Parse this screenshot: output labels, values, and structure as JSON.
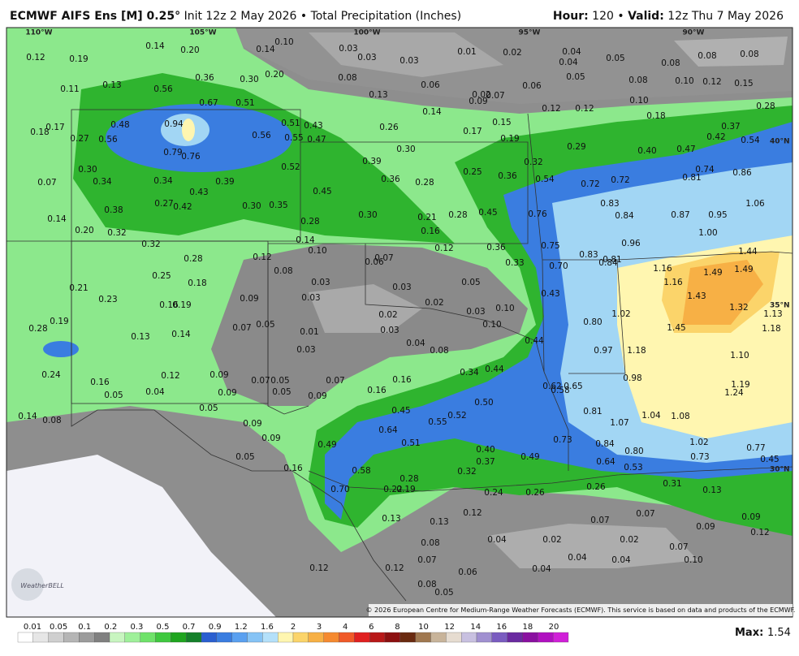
{
  "header": {
    "model": "ECMWF AIFS Ens [M] 0.25°",
    "description": "Init 12z 2 May 2026",
    "separator": "•",
    "product": "Total Precipitation (Inches)",
    "hour_label": "Hour:",
    "hour": "120",
    "valid_label": "Valid:",
    "valid": "12z Thu 7 May 2026"
  },
  "map": {
    "longitudes": [
      "110°W",
      "105°W",
      "100°W",
      "95°W",
      "90°W"
    ],
    "latitudes": [
      "40°N",
      "35°N",
      "30°N"
    ],
    "labels": [
      "0.12",
      "0.19",
      "0.14",
      "0.20",
      "0.14",
      "0.10",
      "0.03",
      "0.03",
      "0.03",
      "0.01",
      "0.02",
      "0.04",
      "0.04",
      "0.05",
      "0.08",
      "0.08",
      "0.08",
      "0.11",
      "0.13",
      "0.36",
      "0.30",
      "0.20",
      "0.08",
      "0.06",
      "0.06",
      "0.05",
      "0.08",
      "0.10",
      "0.12",
      "0.15",
      "0.56",
      "0.13",
      "0.02",
      "0.07",
      "0.09",
      "0.67",
      "0.51",
      "0.14",
      "0.12",
      "0.12",
      "0.10",
      "0.28",
      "0.18",
      "0.18",
      "0.17",
      "0.48",
      "0.94",
      "0.51",
      "0.43",
      "0.26",
      "0.17",
      "0.15",
      "0.37",
      "0.56",
      "0.27",
      "0.56",
      "0.55",
      "0.47",
      "0.19",
      "0.42",
      "0.54",
      "0.79",
      "0.76",
      "0.30",
      "0.29",
      "0.40",
      "0.47",
      "0.39",
      "0.32",
      "0.52",
      "0.30",
      "0.34",
      "0.34",
      "0.39",
      "0.25",
      "0.36",
      "0.54",
      "0.72",
      "0.72",
      "0.81",
      "0.74",
      "0.86",
      "0.07",
      "0.36",
      "0.28",
      "0.43",
      "0.45",
      "0.27",
      "0.42",
      "0.30",
      "0.35",
      "0.38",
      "0.83",
      "0.84",
      "1.06",
      "0.87",
      "0.95",
      "0.14",
      "0.30",
      "0.21",
      "0.28",
      "0.45",
      "0.76",
      "0.28",
      "0.20",
      "0.32",
      "0.16",
      "1.00",
      "0.14",
      "0.32",
      "0.96",
      "0.12",
      "0.36",
      "0.75",
      "0.10",
      "0.83",
      "0.12",
      "0.06",
      "0.07",
      "0.28",
      "0.33",
      "0.70",
      "0.84",
      "0.81",
      "1.16",
      "1.16",
      "1.44",
      "1.49",
      "1.49",
      "0.08",
      "0.25",
      "0.18",
      "0.03",
      "0.03",
      "0.05",
      "0.21",
      "0.43",
      "1.43",
      "0.03",
      "0.09",
      "0.23",
      "0.16",
      "0.19",
      "0.02",
      "0.03",
      "0.10",
      "1.32",
      "1.13",
      "1.02",
      "0.02",
      "0.19",
      "0.07",
      "0.05",
      "0.80",
      "1.45",
      "1.18",
      "0.28",
      "0.03",
      "0.10",
      "0.13",
      "0.14",
      "0.01",
      "0.04",
      "0.44",
      "0.08",
      "0.03",
      "0.97",
      "1.18",
      "1.10",
      "0.34",
      "0.44",
      "0.24",
      "0.12",
      "0.09",
      "0.07",
      "0.05",
      "0.07",
      "0.16",
      "0.98",
      "0.16",
      "1.19",
      "0.04",
      "0.09",
      "0.05",
      "0.16",
      "0.62",
      "0.65",
      "0.58",
      "1.24",
      "0.05",
      "0.09",
      "0.50",
      "0.05",
      "0.45",
      "0.81",
      "1.04",
      "1.08",
      "0.14",
      "0.08",
      "0.52",
      "0.55",
      "1.07",
      "0.09",
      "0.64",
      "0.09",
      "0.73",
      "0.51",
      "0.49",
      "0.84",
      "1.02",
      "0.40",
      "0.80",
      "0.77",
      "0.05",
      "0.49",
      "0.37",
      "0.73",
      "0.45",
      "0.64",
      "0.16",
      "0.58",
      "0.32",
      "0.53",
      "0.28",
      "0.31",
      "0.26",
      "0.70",
      "0.22",
      "0.19",
      "0.24",
      "0.26",
      "0.13",
      "0.13",
      "0.13",
      "0.12",
      "0.07",
      "0.07",
      "0.09",
      "0.09",
      "0.12",
      "0.08",
      "0.04",
      "0.02",
      "0.02",
      "0.07",
      "0.04",
      "0.04",
      "0.10",
      "0.07",
      "0.12",
      "0.12",
      "0.06",
      "0.04",
      "0.08",
      "0.05"
    ],
    "logo": "WeatherBELL",
    "copyright": "© 2026 European Centre for Medium-Range Weather Forecasts (ECMWF). This service is based on data and products of the ECMWF."
  },
  "legend": {
    "ticks": [
      "0.01",
      "0.05",
      "0.1",
      "0.2",
      "0.3",
      "0.5",
      "0.7",
      "0.9",
      "1.2",
      "1.6",
      "2",
      "3",
      "4",
      "6",
      "8",
      "10",
      "12",
      "14",
      "16",
      "18",
      "20"
    ],
    "max_label": "Max:",
    "max": "1.54"
  }
}
